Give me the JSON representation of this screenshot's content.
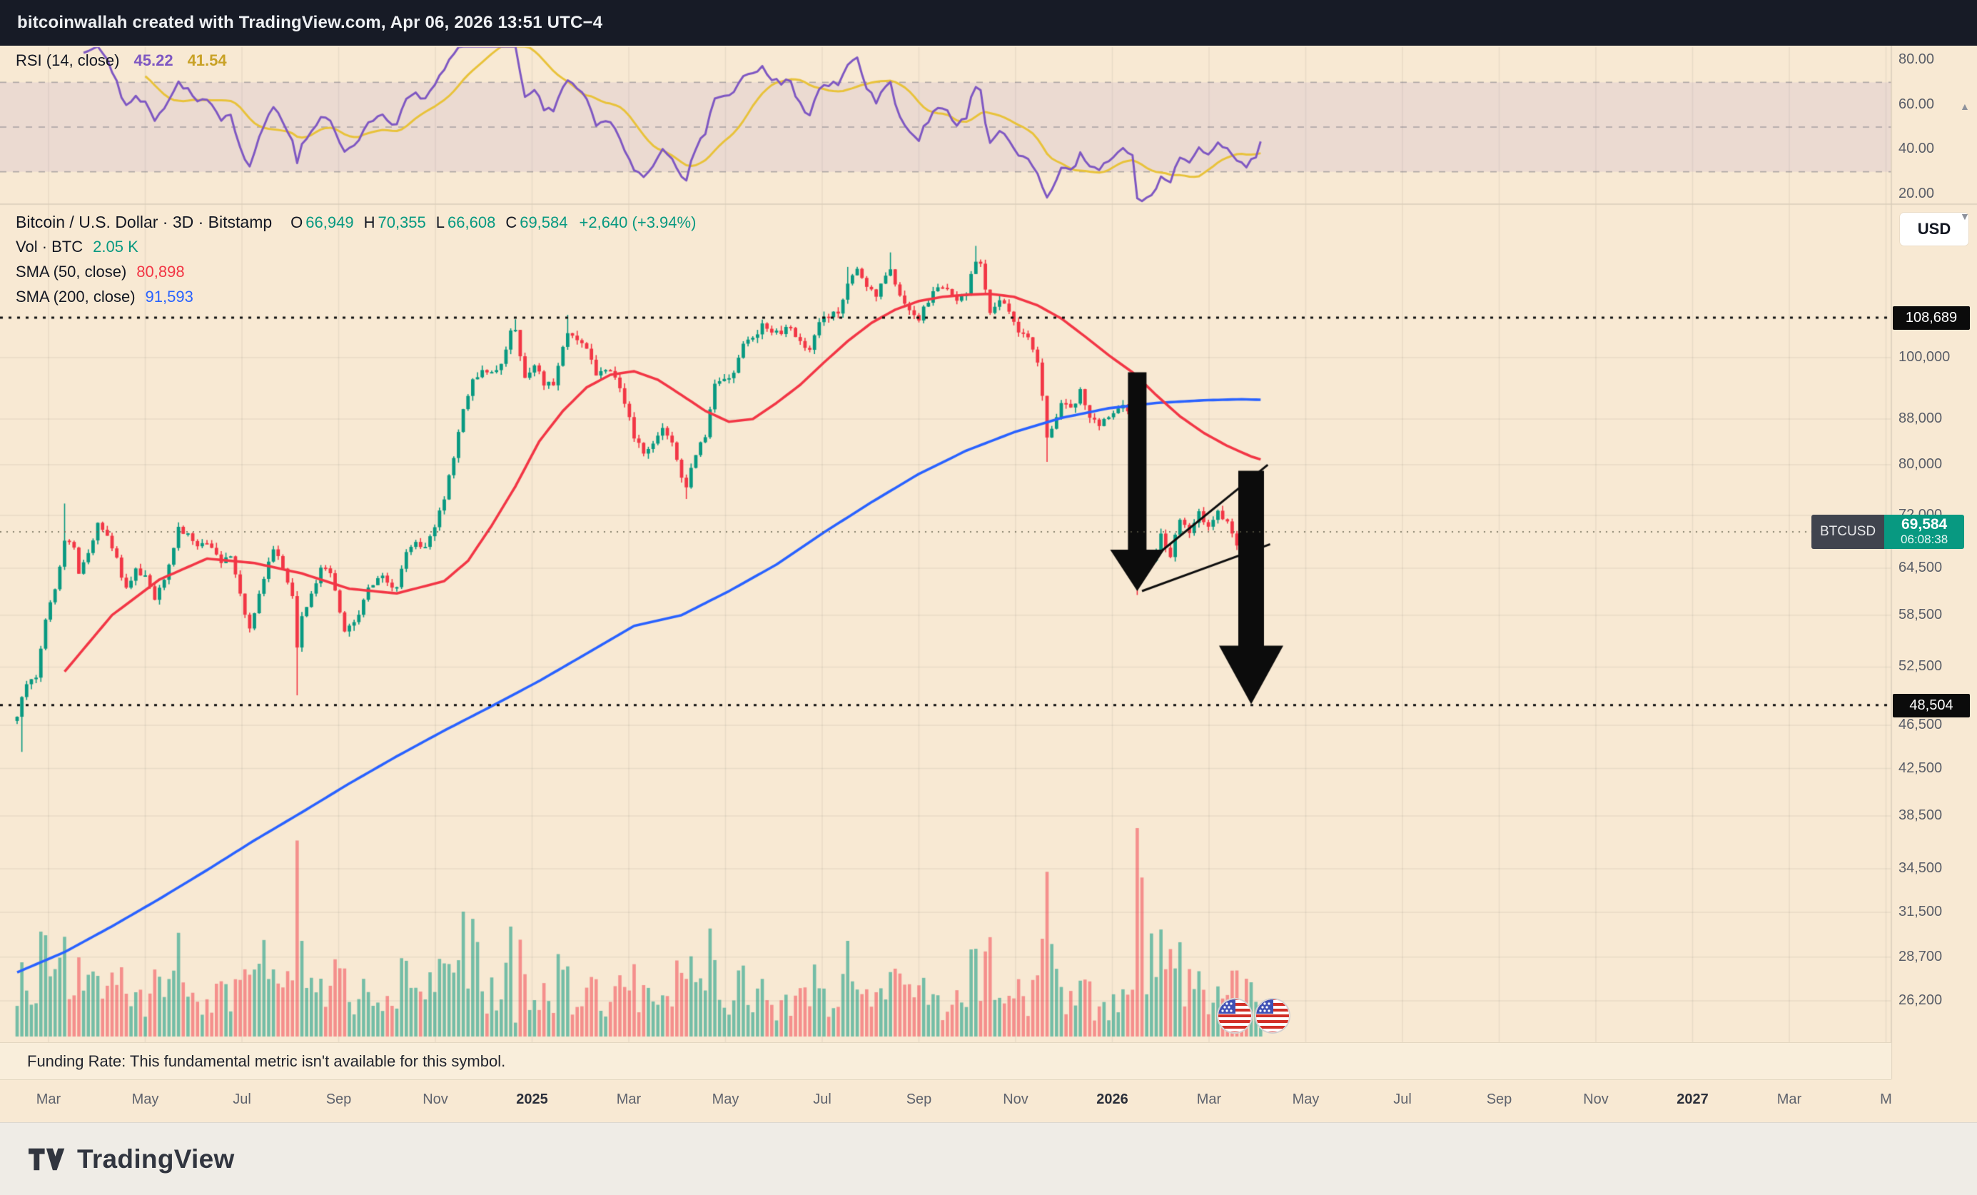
{
  "header": {
    "title": "bitcoinwallah created with TradingView.com, Apr 06, 2026 13:51 UTC−4"
  },
  "rsi_pane": {
    "legend": "RSI (14, close)",
    "value": "45.22",
    "ma_value": "41.54",
    "axis_labels": [
      {
        "text": "80.00",
        "value": 80
      },
      {
        "text": "60.00",
        "value": 60
      },
      {
        "text": "40.00",
        "value": 40
      },
      {
        "text": "20.00",
        "value": 20
      }
    ]
  },
  "main_legend": {
    "title": "Bitcoin / U.S. Dollar · 3D · Bitstamp",
    "ohlc": [
      {
        "k": "O",
        "v": "66,949"
      },
      {
        "k": "H",
        "v": "70,355"
      },
      {
        "k": "L",
        "v": "66,608"
      },
      {
        "k": "C",
        "v": "69,584"
      }
    ],
    "change": "+2,640 (+3.94%)",
    "vol_label": "Vol · BTC",
    "vol_value": "2.05 K",
    "sma50_label": "SMA (50, close)",
    "sma50_value": "80,898",
    "sma200_label": "SMA (200, close)",
    "sma200_value": "91,593"
  },
  "main_pane": {
    "usd_button": "USD",
    "funding_note": "Funding Rate: This fundamental metric isn't available for this symbol.",
    "price_axis_labels": [
      {
        "text": "100,000",
        "value": 100000
      },
      {
        "text": "88,000",
        "value": 88000
      },
      {
        "text": "80,000",
        "value": 80000
      },
      {
        "text": "72,000",
        "value": 72000
      },
      {
        "text": "64,500",
        "value": 64500
      },
      {
        "text": "58,500",
        "value": 58500
      },
      {
        "text": "52,500",
        "value": 52500
      },
      {
        "text": "46,500",
        "value": 46500
      },
      {
        "text": "42,500",
        "value": 42500
      },
      {
        "text": "38,500",
        "value": 38500
      },
      {
        "text": "34,500",
        "value": 34500
      },
      {
        "text": "31,500",
        "value": 31500
      },
      {
        "text": "28,700",
        "value": 28700
      },
      {
        "text": "26,200",
        "value": 26200
      }
    ],
    "level_badges": [
      {
        "text": "108,689",
        "value": 108689
      },
      {
        "text": "48,504",
        "value": 48504
      }
    ],
    "price_badge": {
      "symbol": "BTCUSD",
      "price": "69,584",
      "countdown": "06:08:38"
    }
  },
  "right_controls": {
    "collapse_up": "▲",
    "collapse_down": "▼"
  },
  "time_axis": {
    "labels": [
      "Mar",
      "May",
      "Jul",
      "Sep",
      "Nov",
      "2025",
      "Mar",
      "May",
      "Jul",
      "Sep",
      "Nov",
      "2026",
      "Mar",
      "May",
      "Jul",
      "Sep",
      "Nov",
      "2027",
      "Mar",
      "M"
    ]
  },
  "footer": {
    "brand": "TradingView"
  },
  "colors": {
    "background": "#f8e9d3",
    "header_bg": "#171b26",
    "up": "#089981",
    "down": "#f23645",
    "sma50": "#f23645",
    "sma200": "#2962ff",
    "rsi": "#7e57c2",
    "rsi_ma": "#e8c23a",
    "level_line": "#101010",
    "badge_bg": "#0b0b0b",
    "price_badge_bg": "#089981",
    "grid": "rgba(54,58,69,0.08)",
    "vol_up": "rgba(8,153,129,0.55)",
    "vol_down": "rgba(242,54,69,0.5)"
  },
  "chart_data": {
    "type": "candlestick",
    "symbol": "Bitcoin / U.S. Dollar",
    "ticker": "BTCUSD",
    "exchange": "Bitstamp",
    "interval": "3D",
    "price_scale": "log",
    "visible_time_range": [
      "Feb 2024",
      "Apr 2027"
    ],
    "start_date": "2024-02-10",
    "interval_days": 3,
    "candles_total": 263,
    "current": {
      "open": 66949,
      "high": 70355,
      "low": 66608,
      "close": 69584,
      "change": 2640,
      "change_pct": 3.94,
      "volume": "2.05 K"
    },
    "indicators": {
      "sma50": 80898,
      "sma200": 91593,
      "rsi14": 45.22,
      "rsi14_ma": 41.54
    },
    "levels": {
      "resistance": 108689,
      "support": 48504
    },
    "close_path_anchors": [
      [
        0,
        47500
      ],
      [
        2,
        50500
      ],
      [
        4,
        51500
      ],
      [
        6,
        57500
      ],
      [
        8,
        62000
      ],
      [
        10,
        68500
      ],
      [
        12,
        67500
      ],
      [
        13,
        63500
      ],
      [
        15,
        67000
      ],
      [
        17,
        70500
      ],
      [
        19,
        69500
      ],
      [
        21,
        66000
      ],
      [
        23,
        61500
      ],
      [
        25,
        64000
      ],
      [
        27,
        63800
      ],
      [
        29,
        60500
      ],
      [
        31,
        62500
      ],
      [
        34,
        70200
      ],
      [
        36,
        69000
      ],
      [
        38,
        67800
      ],
      [
        40,
        68300
      ],
      [
        43,
        65500
      ],
      [
        45,
        66500
      ],
      [
        47,
        61000
      ],
      [
        49,
        57000
      ],
      [
        52,
        63500
      ],
      [
        54,
        67000
      ],
      [
        56,
        64500
      ],
      [
        58,
        61000
      ],
      [
        59,
        54500
      ],
      [
        60,
        58500
      ],
      [
        62,
        61000
      ],
      [
        64,
        64300
      ],
      [
        66,
        63900
      ],
      [
        68,
        59000
      ],
      [
        69,
        56200
      ],
      [
        71,
        57500
      ],
      [
        73,
        60500
      ],
      [
        76,
        63600
      ],
      [
        78,
        62800
      ],
      [
        80,
        62100
      ],
      [
        82,
        66400
      ],
      [
        84,
        68200
      ],
      [
        86,
        67000
      ],
      [
        88,
        69900
      ],
      [
        90,
        74500
      ],
      [
        92,
        81000
      ],
      [
        94,
        90500
      ],
      [
        96,
        95500
      ],
      [
        98,
        97000
      ],
      [
        100,
        96500
      ],
      [
        102,
        99000
      ],
      [
        104,
        105500
      ],
      [
        105,
        106200
      ],
      [
        107,
        95800
      ],
      [
        109,
        98500
      ],
      [
        111,
        94500
      ],
      [
        113,
        94300
      ],
      [
        115,
        102500
      ],
      [
        116,
        105000
      ],
      [
        118,
        103800
      ],
      [
        120,
        102000
      ],
      [
        122,
        96800
      ],
      [
        124,
        98000
      ],
      [
        126,
        96200
      ],
      [
        128,
        91500
      ],
      [
        130,
        84500
      ],
      [
        132,
        82500
      ],
      [
        134,
        84000
      ],
      [
        136,
        86500
      ],
      [
        138,
        83500
      ],
      [
        140,
        78500
      ],
      [
        141,
        76500
      ],
      [
        143,
        81500
      ],
      [
        145,
        85000
      ],
      [
        147,
        94500
      ],
      [
        149,
        95000
      ],
      [
        151,
        97200
      ],
      [
        153,
        103000
      ],
      [
        155,
        104000
      ],
      [
        157,
        107500
      ],
      [
        159,
        105000
      ],
      [
        161,
        105800
      ],
      [
        163,
        106500
      ],
      [
        165,
        103500
      ],
      [
        167,
        101500
      ],
      [
        169,
        107300
      ],
      [
        171,
        108800
      ],
      [
        173,
        110000
      ],
      [
        175,
        117500
      ],
      [
        177,
        119500
      ],
      [
        179,
        116000
      ],
      [
        181,
        114200
      ],
      [
        183,
        119000
      ],
      [
        184,
        120800
      ],
      [
        186,
        113500
      ],
      [
        188,
        111000
      ],
      [
        190,
        108800
      ],
      [
        192,
        112500
      ],
      [
        194,
        115800
      ],
      [
        196,
        116000
      ],
      [
        198,
        112000
      ],
      [
        200,
        114500
      ],
      [
        202,
        122500
      ],
      [
        203,
        121000
      ],
      [
        205,
        109000
      ],
      [
        207,
        112000
      ],
      [
        209,
        110500
      ],
      [
        211,
        106000
      ],
      [
        213,
        104000
      ],
      [
        215,
        99500
      ],
      [
        217,
        84500
      ],
      [
        218,
        86500
      ],
      [
        220,
        91500
      ],
      [
        222,
        90000
      ],
      [
        224,
        93000
      ],
      [
        226,
        88500
      ],
      [
        228,
        87000
      ],
      [
        230,
        88000
      ],
      [
        232,
        90500
      ],
      [
        234,
        89800
      ],
      [
        235,
        89200
      ],
      [
        236,
        66800
      ],
      [
        237,
        64200
      ],
      [
        239,
        65500
      ],
      [
        241,
        68800
      ],
      [
        243,
        66200
      ],
      [
        245,
        71800
      ],
      [
        247,
        69000
      ],
      [
        249,
        72300
      ],
      [
        251,
        69800
      ],
      [
        253,
        73200
      ],
      [
        255,
        70600
      ],
      [
        257,
        67400
      ],
      [
        259,
        65900
      ],
      [
        261,
        66900
      ],
      [
        262,
        69584
      ]
    ],
    "low_overrides": [
      [
        1,
        44000
      ],
      [
        59,
        49500
      ],
      [
        141,
        74500
      ],
      [
        217,
        80500
      ],
      [
        236,
        61000
      ]
    ],
    "high_overrides": [
      [
        10,
        73800
      ],
      [
        105,
        108300
      ],
      [
        116,
        109300
      ],
      [
        175,
        120800
      ],
      [
        184,
        124500
      ],
      [
        202,
        126200
      ]
    ],
    "sma50_anchors": [
      [
        10,
        52000
      ],
      [
        20,
        58500
      ],
      [
        30,
        63000
      ],
      [
        40,
        65800
      ],
      [
        50,
        65200
      ],
      [
        60,
        63800
      ],
      [
        70,
        61800
      ],
      [
        80,
        61200
      ],
      [
        90,
        62800
      ],
      [
        95,
        65500
      ],
      [
        100,
        70500
      ],
      [
        105,
        76500
      ],
      [
        110,
        84000
      ],
      [
        115,
        89500
      ],
      [
        120,
        94000
      ],
      [
        125,
        96500
      ],
      [
        130,
        97200
      ],
      [
        135,
        95500
      ],
      [
        140,
        92500
      ],
      [
        145,
        89500
      ],
      [
        150,
        87500
      ],
      [
        155,
        88000
      ],
      [
        160,
        91000
      ],
      [
        165,
        94500
      ],
      [
        170,
        99000
      ],
      [
        175,
        103500
      ],
      [
        180,
        107500
      ],
      [
        185,
        110500
      ],
      [
        190,
        112500
      ],
      [
        195,
        113500
      ],
      [
        200,
        114000
      ],
      [
        205,
        114200
      ],
      [
        210,
        113500
      ],
      [
        215,
        111500
      ],
      [
        220,
        108500
      ],
      [
        225,
        104500
      ],
      [
        230,
        100500
      ],
      [
        235,
        97000
      ],
      [
        240,
        92500
      ],
      [
        245,
        88500
      ],
      [
        250,
        85500
      ],
      [
        255,
        83200
      ],
      [
        260,
        81400
      ],
      [
        262,
        80898
      ]
    ],
    "sma200_anchors": [
      [
        0,
        27800
      ],
      [
        10,
        29000
      ],
      [
        20,
        30600
      ],
      [
        30,
        32400
      ],
      [
        40,
        34400
      ],
      [
        50,
        36600
      ],
      [
        60,
        38800
      ],
      [
        70,
        41200
      ],
      [
        80,
        43600
      ],
      [
        90,
        46000
      ],
      [
        100,
        48400
      ],
      [
        110,
        51000
      ],
      [
        120,
        54000
      ],
      [
        130,
        57200
      ],
      [
        140,
        58500
      ],
      [
        150,
        61500
      ],
      [
        160,
        65000
      ],
      [
        170,
        69500
      ],
      [
        180,
        74000
      ],
      [
        190,
        78500
      ],
      [
        200,
        82400
      ],
      [
        210,
        85600
      ],
      [
        220,
        88200
      ],
      [
        230,
        90000
      ],
      [
        240,
        91000
      ],
      [
        250,
        91500
      ],
      [
        258,
        91700
      ],
      [
        262,
        91593
      ]
    ],
    "volume_spikes": [
      [
        34,
        45
      ],
      [
        52,
        35
      ],
      [
        59,
        95
      ],
      [
        90,
        40
      ],
      [
        94,
        60
      ],
      [
        96,
        65
      ],
      [
        97,
        80
      ],
      [
        100,
        45
      ],
      [
        104,
        40
      ],
      [
        175,
        40
      ],
      [
        184,
        35
      ],
      [
        202,
        50
      ],
      [
        205,
        45
      ],
      [
        217,
        75
      ],
      [
        218,
        45
      ],
      [
        236,
        218
      ],
      [
        237,
        100
      ],
      [
        239,
        80
      ],
      [
        241,
        65
      ],
      [
        243,
        58
      ],
      [
        245,
        48
      ],
      [
        247,
        40
      ],
      [
        249,
        35
      ]
    ],
    "rsi_band": [
      30,
      70
    ],
    "rsi_dashed_levels": [
      70,
      50,
      30
    ],
    "annotations": {
      "channel_lines": [
        {
          "from": [
            239.5,
            66000
          ],
          "to": [
            263.5,
            80000
          ]
        },
        {
          "from": [
            237,
            61500
          ],
          "to": [
            264,
            67800
          ]
        }
      ],
      "arrows": [
        {
          "i": 236,
          "from_price": 97000,
          "to_price": 61500,
          "shaft_half": 13,
          "head_half": 38,
          "head_len": 58
        },
        {
          "i": 260,
          "from_price": 79000,
          "to_price": 48600,
          "shaft_half": 18,
          "head_half": 45,
          "head_len": 82
        }
      ],
      "stickers": [
        {
          "type": "us-flag",
          "i": 256.5,
          "price": 25400
        },
        {
          "type": "us-flag",
          "i": 264.5,
          "price": 25400
        }
      ]
    }
  }
}
